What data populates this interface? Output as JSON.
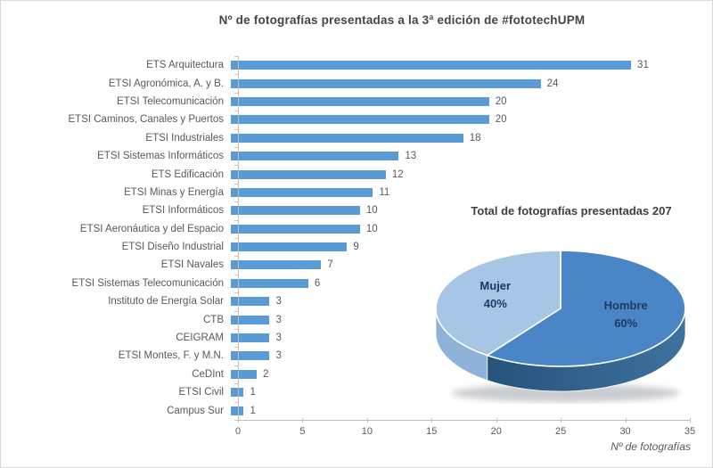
{
  "colors": {
    "bar": "#5B9BD5",
    "axis": "#BFBFBF",
    "text_gray": "#595959",
    "title_gray": "#454545",
    "pie_label_navy": "#1F3864"
  },
  "chart_data": [
    {
      "type": "bar",
      "orientation": "horizontal",
      "title": "Nº de fotografías presentadas a la 3ª edición de #fototechUPM",
      "categories": [
        "ETS Arquitectura",
        "ETSI Agronómica, A. y B.",
        "ETSI Telecomunicación",
        "ETSI Caminos, Canales y Puertos",
        "ETSI Industriales",
        "ETSI Sistemas Informáticos",
        "ETS Edificación",
        "ETSI Minas y Energía",
        "ETSI Informáticos",
        "ETSI Aeronáutica y del Espacio",
        "ETSI Diseño Industrial",
        "ETSI Navales",
        "ETSI Sistemas Telecomunicación",
        "Instituto de Energía Solar",
        "CTB",
        "CEIGRAM",
        "ETSI Montes, F. y M.N.",
        "CeDInt",
        "ETSI Civil",
        "Campus Sur"
      ],
      "values": [
        31,
        24,
        20,
        20,
        18,
        13,
        12,
        11,
        10,
        10,
        9,
        7,
        6,
        3,
        3,
        3,
        3,
        2,
        1,
        1
      ],
      "data_labels": true,
      "xlabel": "Nº de fotografías",
      "xlim": [
        0,
        35
      ],
      "xticks": [
        0,
        5,
        10,
        15,
        20,
        25,
        30,
        35
      ],
      "bar_color": "#5B9BD5",
      "grid": false,
      "legend": "none"
    },
    {
      "type": "pie",
      "style": "3d",
      "title": "Total de fotografías presentadas 207",
      "total": 207,
      "labels": [
        "Hombre",
        "Mujer"
      ],
      "values": [
        60,
        40
      ],
      "unit": "%",
      "slice_colors": [
        "#4A86C5",
        "#A7C6E5"
      ],
      "side_colors": [
        "#2F608D",
        "#8FB3D8"
      ],
      "label_color": "#1F3864",
      "legend": "none"
    }
  ]
}
